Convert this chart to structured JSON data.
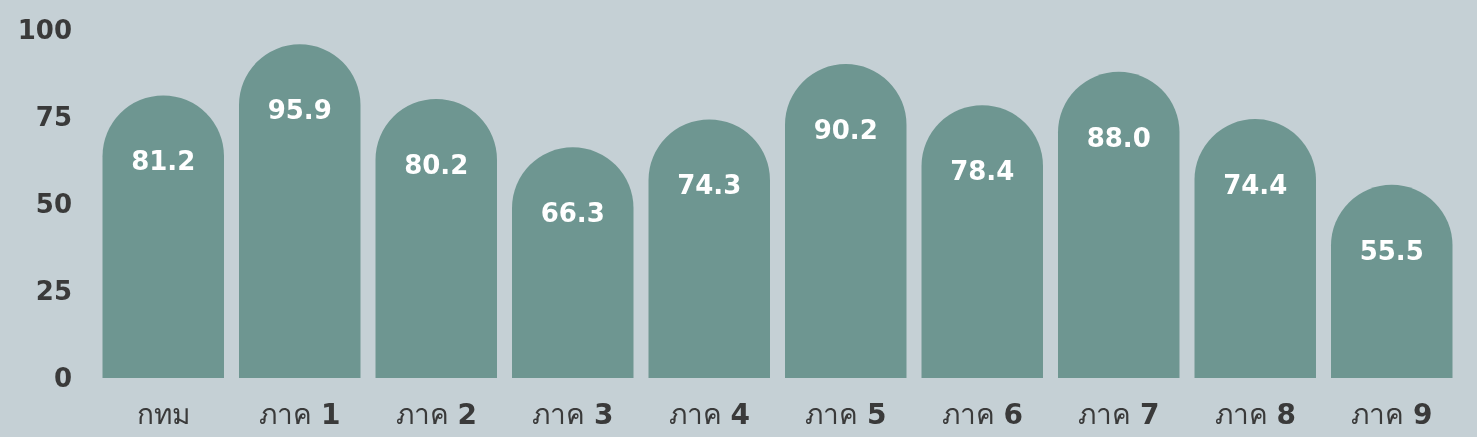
{
  "chart_data": {
    "type": "bar",
    "categories": [
      "กทม",
      "ภาค 1",
      "ภาค 2",
      "ภาค 3",
      "ภาค 4",
      "ภาค 5",
      "ภาค 6",
      "ภาค 7",
      "ภาค 8",
      "ภาค 9"
    ],
    "values": [
      81.2,
      95.9,
      80.2,
      66.3,
      74.3,
      90.2,
      78.4,
      88.0,
      74.4,
      55.5
    ],
    "value_labels": [
      "81.2",
      "95.9",
      "80.2",
      "66.3",
      "74.3",
      "90.2",
      "78.4",
      "88.0",
      "74.4",
      "55.5"
    ],
    "color": "#6e9691",
    "ylim": [
      0,
      100
    ],
    "yticks": [
      0,
      25,
      50,
      75,
      100
    ]
  }
}
